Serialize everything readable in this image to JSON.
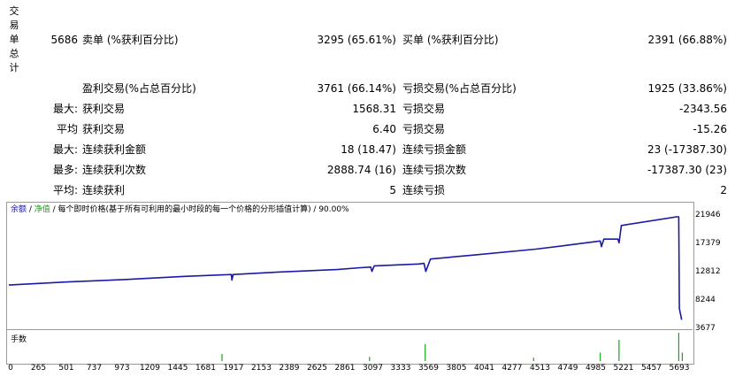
{
  "title_chars": [
    "交",
    "易",
    "单",
    "总",
    "计"
  ],
  "stats": {
    "total_count": "5686",
    "sell_label": "卖单 (%获利百分比)",
    "sell_value": "3295 (65.61%)",
    "buy_label": "买单 (%获利百分比)",
    "buy_value": "2391 (66.88%)",
    "profit_trades_label": "盈利交易(%占总百分比)",
    "profit_trades_value": "3761 (66.14%)",
    "loss_trades_label": "亏损交易(%占总百分比)",
    "loss_trades_value": "1925 (33.86%)",
    "rows": [
      {
        "prefix": "最大:",
        "left_label": "获利交易",
        "left_value": "1568.31",
        "right_label": "亏损交易",
        "right_value": "-2343.56"
      },
      {
        "prefix": "平均",
        "left_label": "获利交易",
        "left_value": "6.40",
        "right_label": "亏损交易",
        "right_value": "-15.26"
      },
      {
        "prefix": "最大:",
        "left_label": "连续获利金额",
        "left_value": "18 (18.47)",
        "right_label": "连续亏损金额",
        "right_value": "23 (-17387.30)"
      },
      {
        "prefix": "最多:",
        "left_label": "连续获利次数",
        "left_value": "2888.74 (16)",
        "right_label": "连续亏损次数",
        "right_value": "-17387.30 (23)"
      },
      {
        "prefix": "平均:",
        "left_label": "连续获利",
        "left_value": "5",
        "right_label": "连续亏损",
        "right_value": "2"
      }
    ]
  },
  "legend": {
    "balance": "余额",
    "sep1": " / ",
    "equity": "净值",
    "rest": " / 每个即时价格(基于所有可利用的最小时段的每一个价格的分形插值计算) / 90.00%"
  },
  "volume_label": "手数",
  "colors": {
    "balance": "#1a1aa6",
    "equity": "#15a315",
    "volume": "#18a318",
    "grid": "#c8c8c8"
  },
  "chart_data": {
    "type": "line",
    "ylabel": "",
    "xlabel": "",
    "y_ticks": [
      21946,
      17379,
      12812,
      8244,
      3677
    ],
    "x_ticks": [
      0,
      265,
      501,
      737,
      973,
      1209,
      1445,
      1681,
      1917,
      2153,
      2389,
      2625,
      2861,
      3097,
      3333,
      3569,
      3805,
      4041,
      4277,
      4513,
      4749,
      4985,
      5221,
      5457,
      5693
    ],
    "ylim": [
      3677,
      21946
    ],
    "xlim": [
      0,
      5800
    ],
    "series": [
      {
        "role": "balance",
        "x": [
          0,
          500,
          1000,
          1500,
          1900,
          1905,
          1915,
          2300,
          2800,
          3000,
          3090,
          3100,
          3120,
          3500,
          3545,
          3560,
          3600,
          4000,
          4500,
          4800,
          5050,
          5060,
          5080,
          5200,
          5210,
          5230,
          5700,
          5720,
          5725,
          5745
        ],
        "y": [
          10800,
          11300,
          11700,
          12200,
          12500,
          11600,
          12500,
          12900,
          13300,
          13600,
          13700,
          13000,
          13900,
          14200,
          14300,
          13000,
          15000,
          15700,
          16600,
          17300,
          17900,
          17000,
          18200,
          18200,
          17600,
          20400,
          21800,
          21800,
          7000,
          5200
        ]
      }
    ]
  },
  "volume_data": {
    "x": [
      1820,
      3080,
      3555,
      4480,
      5050,
      5210,
      5720,
      5750
    ],
    "values": [
      0.25,
      0.15,
      0.6,
      0.12,
      0.3,
      0.75,
      1.0,
      0.3
    ]
  }
}
